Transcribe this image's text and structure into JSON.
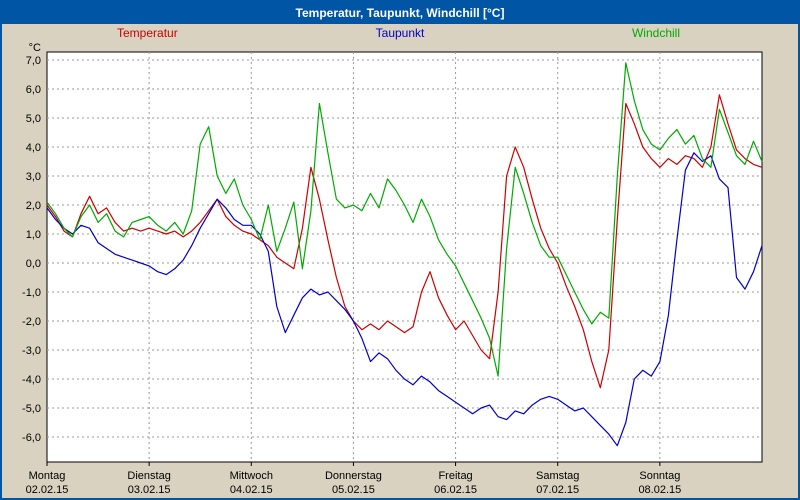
{
  "window": {
    "title": "Temperatur, Taupunkt, Windchill [°C]"
  },
  "chart_data": {
    "type": "line",
    "title": "Temperatur, Taupunkt, Windchill [°C]",
    "y_unit": "°C",
    "ylim": [
      -6.9,
      7.3
    ],
    "grid": "dashed",
    "legend_position": "top",
    "x_total_hours": 168,
    "x_step_hours": 2,
    "yticks": [
      {
        "value": 7,
        "label": "7,0"
      },
      {
        "value": 6,
        "label": "6,0"
      },
      {
        "value": 5,
        "label": "5,0"
      },
      {
        "value": 4,
        "label": "4,0"
      },
      {
        "value": 3,
        "label": "3,0"
      },
      {
        "value": 2,
        "label": "2,0"
      },
      {
        "value": 1,
        "label": "1,0"
      },
      {
        "value": 0,
        "label": "0,0"
      },
      {
        "value": -1,
        "label": "-1,0"
      },
      {
        "value": -2,
        "label": "-2,0"
      },
      {
        "value": -3,
        "label": "-3,0"
      },
      {
        "value": -4,
        "label": "-4,0"
      },
      {
        "value": -5,
        "label": "-5,0"
      },
      {
        "value": -6,
        "label": "-6,0"
      }
    ],
    "days": [
      {
        "name": "Montag",
        "date": "02.02.15"
      },
      {
        "name": "Dienstag",
        "date": "03.02.15"
      },
      {
        "name": "Mittwoch",
        "date": "04.02.15"
      },
      {
        "name": "Donnerstag",
        "date": "05.02.15"
      },
      {
        "name": "Freitag",
        "date": "06.02.15"
      },
      {
        "name": "Samstag",
        "date": "07.02.15"
      },
      {
        "name": "Sonntag",
        "date": "08.02.15"
      }
    ],
    "series": [
      {
        "name": "Temperatur",
        "color": "#cc0000",
        "values": [
          2.0,
          1.6,
          1.1,
          0.9,
          1.7,
          2.3,
          1.7,
          1.9,
          1.4,
          1.1,
          1.2,
          1.1,
          1.2,
          1.1,
          1.0,
          1.1,
          0.9,
          1.1,
          1.4,
          1.8,
          2.2,
          1.6,
          1.3,
          1.1,
          1.0,
          0.8,
          0.6,
          0.2,
          0.0,
          -0.2,
          1.2,
          3.3,
          2.2,
          0.8,
          -0.5,
          -1.5,
          -2.0,
          -2.3,
          -2.1,
          -2.3,
          -2.0,
          -2.2,
          -2.4,
          -2.2,
          -1.0,
          -0.3,
          -1.2,
          -1.8,
          -2.3,
          -2.0,
          -2.5,
          -3.0,
          -3.3,
          -1.0,
          3.0,
          4.0,
          3.3,
          2.2,
          1.2,
          0.5,
          0.0,
          -0.8,
          -1.5,
          -2.3,
          -3.4,
          -4.3,
          -3.0,
          1.5,
          5.5,
          4.8,
          4.0,
          3.6,
          3.3,
          3.6,
          3.4,
          3.7,
          3.6,
          3.3,
          4.0,
          5.8,
          4.8,
          3.9,
          3.6,
          3.4,
          3.3
        ]
      },
      {
        "name": "Taupunkt",
        "color": "#0000cc",
        "values": [
          1.9,
          1.5,
          1.2,
          1.0,
          1.3,
          1.2,
          0.7,
          0.5,
          0.3,
          0.2,
          0.1,
          0.0,
          -0.1,
          -0.3,
          -0.4,
          -0.2,
          0.1,
          0.6,
          1.2,
          1.7,
          2.2,
          1.9,
          1.5,
          1.3,
          1.3,
          1.0,
          0.4,
          -1.5,
          -2.4,
          -1.8,
          -1.2,
          -0.9,
          -1.1,
          -1.0,
          -1.3,
          -1.6,
          -2.0,
          -2.6,
          -3.4,
          -3.1,
          -3.3,
          -3.7,
          -4.0,
          -4.2,
          -3.9,
          -4.1,
          -4.4,
          -4.6,
          -4.8,
          -5.0,
          -5.2,
          -5.0,
          -4.9,
          -5.3,
          -5.4,
          -5.1,
          -5.2,
          -4.9,
          -4.7,
          -4.6,
          -4.7,
          -4.9,
          -5.1,
          -5.0,
          -5.3,
          -5.6,
          -5.9,
          -6.3,
          -5.5,
          -4.0,
          -3.7,
          -3.9,
          -3.4,
          -1.8,
          0.8,
          3.2,
          3.8,
          3.5,
          3.7,
          2.9,
          2.6,
          -0.5,
          -0.9,
          -0.3,
          0.6
        ]
      },
      {
        "name": "Windchill",
        "color": "#00aa00",
        "values": [
          2.1,
          1.7,
          1.2,
          0.9,
          1.6,
          2.0,
          1.4,
          1.7,
          1.1,
          0.9,
          1.4,
          1.5,
          1.6,
          1.3,
          1.1,
          1.4,
          1.0,
          1.8,
          4.1,
          4.7,
          3.0,
          2.4,
          2.9,
          2.0,
          1.5,
          0.8,
          2.0,
          0.4,
          1.2,
          2.1,
          -0.2,
          1.8,
          5.5,
          3.8,
          2.2,
          1.9,
          2.0,
          1.8,
          2.4,
          1.9,
          2.9,
          2.5,
          2.0,
          1.4,
          2.2,
          1.6,
          0.8,
          0.3,
          -0.1,
          -0.7,
          -1.3,
          -1.9,
          -2.6,
          -3.9,
          0.5,
          3.3,
          2.4,
          1.4,
          0.6,
          0.2,
          0.2,
          -0.4,
          -1.0,
          -1.6,
          -2.1,
          -1.7,
          -1.9,
          3.0,
          6.9,
          5.6,
          4.6,
          4.1,
          3.9,
          4.3,
          4.6,
          4.1,
          4.4,
          3.6,
          3.3,
          5.3,
          4.5,
          3.7,
          3.4,
          4.2,
          3.5
        ]
      }
    ]
  }
}
